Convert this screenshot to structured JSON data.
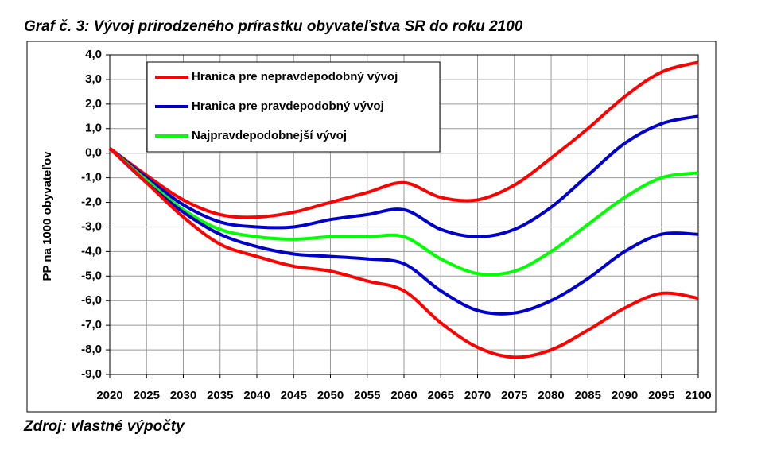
{
  "chart_data": {
    "type": "line",
    "title": "Graf č. 3: Vývoj prirodzeného prírastku obyvateľstva SR do roku 2100",
    "source": "Zdroj: vlastné výpočty",
    "y_label": "PP na 1000 obyvateľov",
    "x": [
      2020,
      2025,
      2030,
      2035,
      2040,
      2045,
      2050,
      2055,
      2060,
      2065,
      2070,
      2075,
      2080,
      2085,
      2090,
      2095,
      2100
    ],
    "xlim": [
      2020,
      2100
    ],
    "xticks": [
      2020,
      2025,
      2030,
      2035,
      2040,
      2045,
      2050,
      2055,
      2060,
      2065,
      2070,
      2075,
      2080,
      2085,
      2090,
      2095,
      2100
    ],
    "ylim": [
      -9,
      4
    ],
    "yticks": [
      {
        "value": 4,
        "label": "4,0"
      },
      {
        "value": 3,
        "label": "3,0"
      },
      {
        "value": 2,
        "label": "2,0"
      },
      {
        "value": 1,
        "label": "1,0"
      },
      {
        "value": 0,
        "label": "0,0"
      },
      {
        "value": -1,
        "label": "-1,0"
      },
      {
        "value": -2,
        "label": "-2,0"
      },
      {
        "value": -3,
        "label": "-3,0"
      },
      {
        "value": -4,
        "label": "-4,0"
      },
      {
        "value": -5,
        "label": "-5,0"
      },
      {
        "value": -6,
        "label": "-6,0"
      },
      {
        "value": -7,
        "label": "-7,0"
      },
      {
        "value": -8,
        "label": "-8,0"
      },
      {
        "value": -9,
        "label": "-9,0"
      }
    ],
    "grid": true,
    "legend": "upper-left",
    "series": [
      {
        "name": "Hranica pre nepravdepodobný vývoj",
        "color": "#ff0000",
        "values": [
          0.2,
          -0.9,
          -1.9,
          -2.5,
          -2.6,
          -2.4,
          -2.0,
          -1.6,
          -1.2,
          -1.8,
          -1.9,
          -1.3,
          -0.2,
          1.0,
          2.3,
          3.3,
          3.7
        ]
      },
      {
        "name": "Hranica pre pravdepodobný vývoj",
        "color": "#0000cc",
        "values": [
          0.2,
          -1.0,
          -2.1,
          -2.8,
          -3.0,
          -3.0,
          -2.7,
          -2.5,
          -2.3,
          -3.1,
          -3.4,
          -3.1,
          -2.2,
          -0.9,
          0.4,
          1.2,
          1.5
        ]
      },
      {
        "name": "Najpravdepodobnejší vývoj",
        "color": "#00ff00",
        "values": [
          0.2,
          -1.1,
          -2.3,
          -3.1,
          -3.4,
          -3.5,
          -3.4,
          -3.4,
          -3.4,
          -4.3,
          -4.9,
          -4.8,
          -4.0,
          -2.9,
          -1.8,
          -1.0,
          -0.8
        ]
      },
      {
        "color": "#0000cc",
        "values": [
          0.2,
          -1.2,
          -2.4,
          -3.3,
          -3.8,
          -4.1,
          -4.2,
          -4.3,
          -4.5,
          -5.6,
          -6.4,
          -6.5,
          -6.0,
          -5.1,
          -4.0,
          -3.3,
          -3.3
        ]
      },
      {
        "color": "#ff0000",
        "values": [
          0.2,
          -1.2,
          -2.6,
          -3.7,
          -4.2,
          -4.6,
          -4.8,
          -5.2,
          -5.6,
          -6.9,
          -7.9,
          -8.3,
          -8.0,
          -7.2,
          -6.3,
          -5.7,
          -5.9
        ]
      }
    ]
  }
}
